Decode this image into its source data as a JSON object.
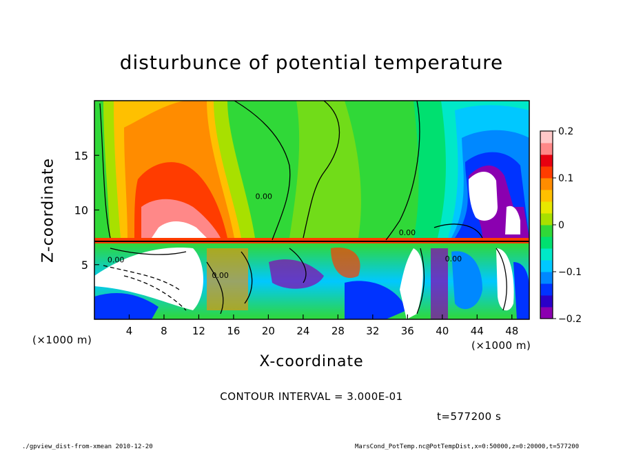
{
  "chart_data": {
    "type": "heatmap",
    "title": "disturbunce of potential temperature",
    "xlabel": "X-coordinate",
    "ylabel": "Z-coordinate",
    "x_unit": "(×1000 m)",
    "y_unit": "(×1000 m)",
    "xlim": [
      0,
      50
    ],
    "ylim": [
      0,
      20
    ],
    "x_ticks": [
      4,
      8,
      12,
      16,
      20,
      24,
      28,
      32,
      36,
      40,
      44,
      48
    ],
    "y_ticks": [
      5,
      10,
      15
    ],
    "colorbar": {
      "range": [
        -0.2,
        0.2
      ],
      "ticks": [
        {
          "value": 0.2,
          "label": "0.2"
        },
        {
          "value": 0.1,
          "label": "0.1"
        },
        {
          "value": 0,
          "label": "0"
        },
        {
          "value": -0.1,
          "label": "−0.1"
        },
        {
          "value": -0.2,
          "label": "−0.2"
        }
      ],
      "colors": [
        "#8b00b0",
        "#2b00c8",
        "#0033ff",
        "#0088ff",
        "#00c8ff",
        "#00e8c8",
        "#00e070",
        "#30d838",
        "#a8e000",
        "#e8e800",
        "#ffc000",
        "#ff8c00",
        "#ff3c00",
        "#e80010",
        "#ff8888",
        "#ffc8c8"
      ]
    },
    "contour_interval": "CONTOUR INTERVAL = 3.000E-01",
    "contour_labels": [
      {
        "text": "0.00",
        "x": 1.5,
        "y": 5.2
      },
      {
        "text": "0.00",
        "x": 18.5,
        "y": 11.0
      },
      {
        "text": "0.00",
        "x": 35.0,
        "y": 7.7
      },
      {
        "text": "0.00",
        "x": 13.5,
        "y": 3.8
      },
      {
        "text": "0.00",
        "x": 40.3,
        "y": 5.3
      }
    ],
    "time": "t=577200 s",
    "footer_left": "./gpview_dist-from-xmean  2010-12-20",
    "footer_right": "MarsCond_PotTemp.nc@PotTempDist,x=0:50000,z=0:20000,t=577200"
  }
}
